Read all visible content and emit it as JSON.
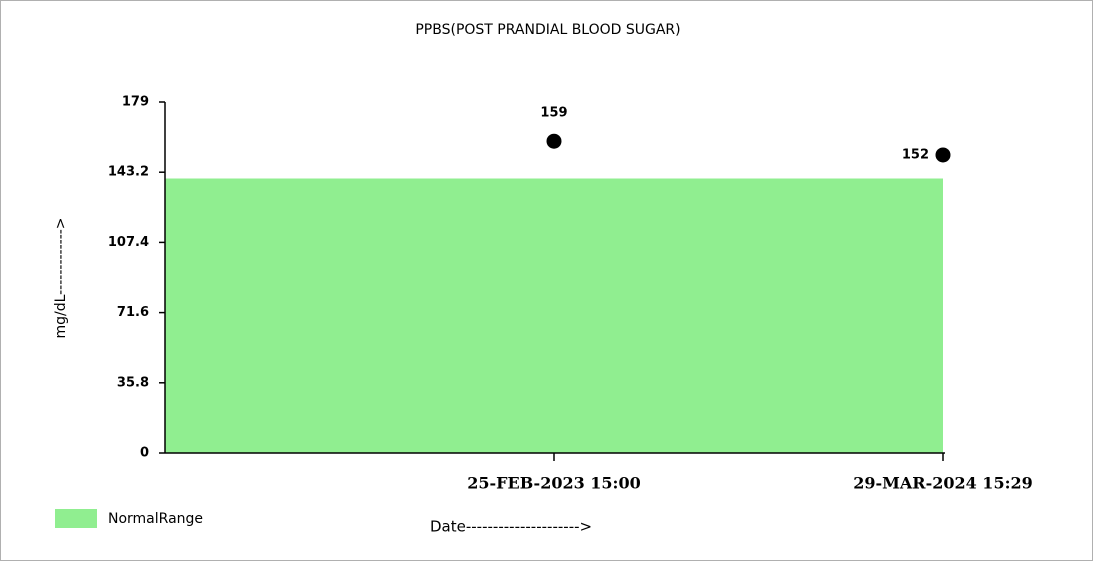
{
  "chart_data": {
    "type": "scatter",
    "title": "PPBS(POST PRANDIAL BLOOD SUGAR)",
    "y_label": "mg/dL------------->",
    "x_label": "Date--------------------->",
    "categories": [
      "25-FEB-2023 15:00",
      "29-MAR-2024 15:29"
    ],
    "values": [
      159,
      152
    ],
    "color": "#000000",
    "series": [
      {
        "name": "NormalRange",
        "color": "#90ee90",
        "values": [
          140,
          140
        ]
      }
    ],
    "ylim": [
      0,
      179
    ],
    "yticks": [
      0,
      35.8,
      71.6,
      107.4,
      143.2,
      179
    ],
    "grid": false
  }
}
